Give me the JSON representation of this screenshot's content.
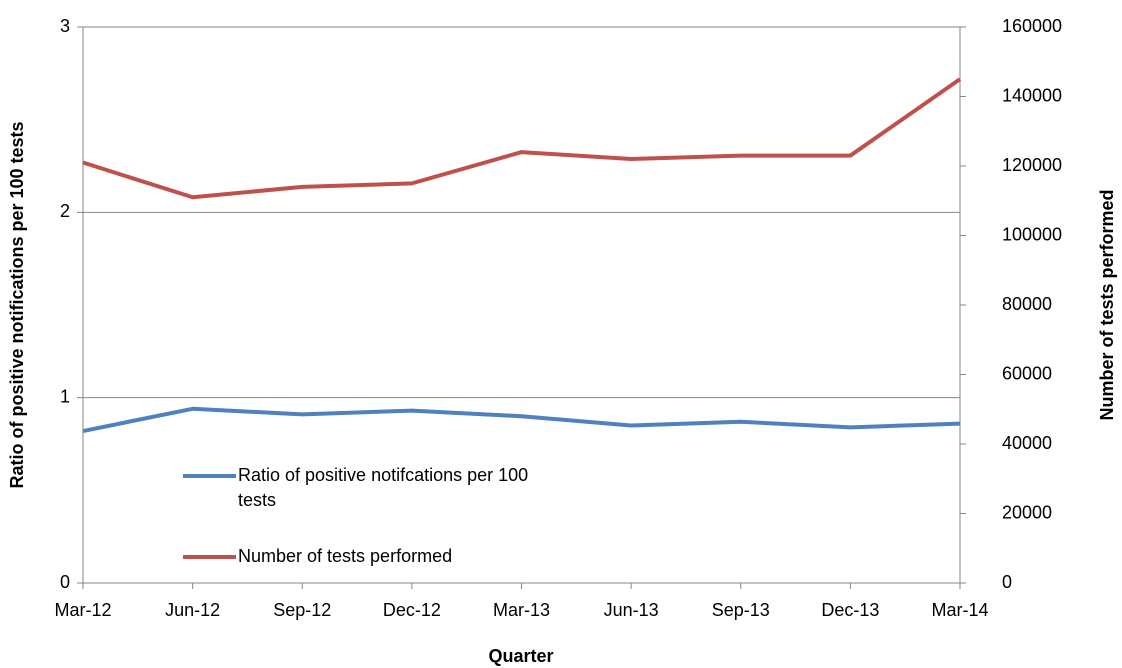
{
  "chart_data": {
    "type": "line",
    "x_label": "Quarter",
    "y_label": "Ratio of positive notifications per 100 tests",
    "y2_label": "Number of tests performed",
    "categories": [
      "Mar-12",
      "Jun-12",
      "Sep-12",
      "Dec-12",
      "Mar-13",
      "Jun-13",
      "Sep-13",
      "Dec-13",
      "Mar-14"
    ],
    "series": [
      {
        "name": "Ratio of positive notifcations per 100 tests",
        "color": "#4f81bd",
        "values": [
          0.82,
          0.94,
          0.91,
          0.93,
          0.9,
          0.85,
          0.87,
          0.84,
          0.86
        ]
      },
      {
        "name": "Number of tests performed",
        "color": "#c0504d",
        "axis": "y2",
        "values": [
          121000,
          111000,
          114000,
          115000,
          124000,
          122000,
          123000,
          123000,
          145000
        ]
      }
    ],
    "ylim": [
      0,
      3
    ],
    "yticks": [
      0,
      1,
      2,
      3
    ],
    "y2lim": [
      0,
      160000
    ],
    "y2ticks": [
      0,
      20000,
      40000,
      60000,
      80000,
      100000,
      120000,
      140000,
      160000
    ],
    "grid": true,
    "legend": "lower left"
  }
}
